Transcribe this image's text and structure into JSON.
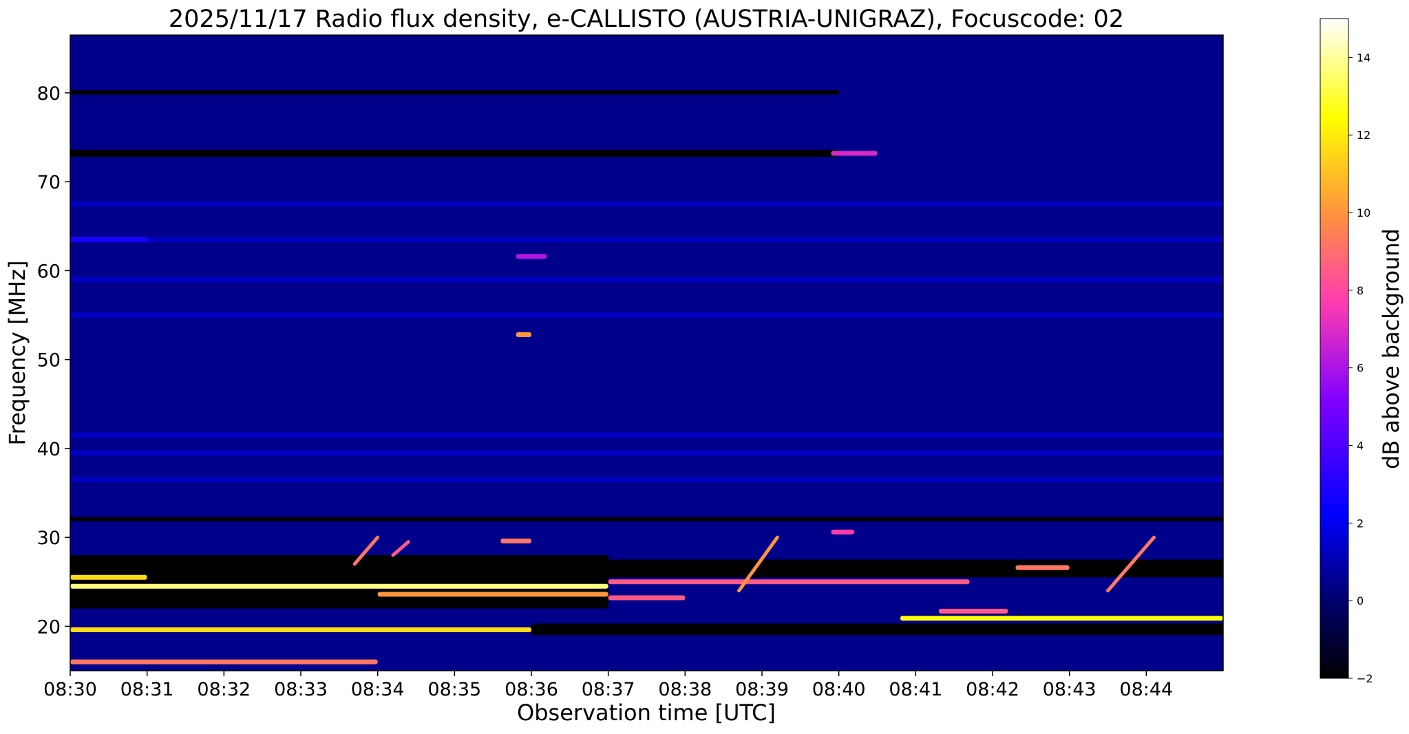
{
  "chart_data": {
    "type": "heatmap",
    "title": "2025/11/17  Radio flux density, e-CALLISTO (AUSTRIA-UNIGRAZ), Focuscode: 02",
    "xlabel": "Observation time [UTC]",
    "ylabel": "Frequency [MHz]",
    "x_ticks": [
      "08:30",
      "08:31",
      "08:32",
      "08:33",
      "08:34",
      "08:35",
      "08:36",
      "08:37",
      "08:38",
      "08:39",
      "08:40",
      "08:41",
      "08:42",
      "08:43",
      "08:44"
    ],
    "x_range": [
      "08:30",
      "08:45"
    ],
    "y_ticks": [
      20,
      30,
      40,
      50,
      60,
      70,
      80
    ],
    "y_range": [
      15,
      86.5
    ],
    "colorbar": {
      "label": "dB above background",
      "range": [
        -2,
        15
      ],
      "ticks": [
        -2,
        0,
        2,
        4,
        6,
        8,
        10,
        12,
        14
      ],
      "colormap": "gnuplot2",
      "colors": [
        "#000000",
        "#0000ff",
        "#8000ff",
        "#ff40a0",
        "#ffa040",
        "#ffff00",
        "#ffffff"
      ]
    },
    "background_level_db": -0.5,
    "grid": false,
    "features": [
      {
        "type": "continuum",
        "freq_mhz": 24.5,
        "start": "08:30",
        "end": "08:37",
        "db": 14
      },
      {
        "type": "continuum",
        "freq_mhz": 25.5,
        "start": "08:30",
        "end": "08:31",
        "db": 12
      },
      {
        "type": "continuum",
        "freq_mhz": 23.6,
        "start": "08:34",
        "end": "08:37",
        "db": 10
      },
      {
        "type": "continuum",
        "freq_mhz": 19.6,
        "start": "08:30",
        "end": "08:36",
        "db": 12
      },
      {
        "type": "continuum",
        "freq_mhz": 16.0,
        "start": "08:30",
        "end": "08:34",
        "db": 9
      },
      {
        "type": "continuum",
        "freq_mhz": 25.0,
        "start": "08:37",
        "end": "08:41.7",
        "db": 8
      },
      {
        "type": "continuum",
        "freq_mhz": 23.2,
        "start": "08:37",
        "end": "08:38",
        "db": 8
      },
      {
        "type": "continuum",
        "freq_mhz": 20.9,
        "start": "08:40.8",
        "end": "08:45",
        "db": 13
      },
      {
        "type": "continuum",
        "freq_mhz": 21.7,
        "start": "08:41.3",
        "end": "08:42.2",
        "db": 8
      },
      {
        "type": "continuum",
        "freq_mhz": 26.6,
        "start": "08:42.3",
        "end": "08:43",
        "db": 9
      },
      {
        "type": "continuum",
        "freq_mhz": 29.6,
        "start": "08:35.6",
        "end": "08:36",
        "db": 9
      },
      {
        "type": "continuum",
        "freq_mhz": 30.6,
        "start": "08:39.9",
        "end": "08:40.2",
        "db": 7
      },
      {
        "type": "continuum",
        "freq_mhz": 73.2,
        "start": "08:39.9",
        "end": "08:40.5",
        "db": 6
      },
      {
        "type": "continuum",
        "freq_mhz": 61.6,
        "start": "08:35.8",
        "end": "08:36.2",
        "db": 5
      },
      {
        "type": "continuum",
        "freq_mhz": 52.8,
        "start": "08:35.8",
        "end": "08:36",
        "db": 10
      },
      {
        "type": "continuum",
        "freq_mhz": 63.5,
        "start": "08:30",
        "end": "08:31",
        "db": 2
      },
      {
        "type": "drift_burst",
        "start": "08:38.7",
        "end": "08:39.2",
        "freq_from": 24,
        "freq_to": 30,
        "db": 10
      },
      {
        "type": "drift_burst",
        "start": "08:43.5",
        "end": "08:44.1",
        "freq_from": 24,
        "freq_to": 30,
        "db": 9
      },
      {
        "type": "drift_burst",
        "start": "08:33.7",
        "end": "08:34",
        "freq_from": 27,
        "freq_to": 30,
        "db": 9
      },
      {
        "type": "drift_burst",
        "start": "08:34.2",
        "end": "08:34.4",
        "freq_from": 28,
        "freq_to": 29.5,
        "db": 8
      }
    ],
    "dark_bands": [
      {
        "freq_from": 22,
        "freq_to": 28,
        "start": "08:30",
        "end": "08:37"
      },
      {
        "freq_from": 25.5,
        "freq_to": 27.5,
        "start": "08:37",
        "end": "08:45"
      },
      {
        "freq_from": 19,
        "freq_to": 20.3,
        "start": "08:36",
        "end": "08:45"
      },
      {
        "freq_from": 31.8,
        "freq_to": 32.3,
        "start": "08:30",
        "end": "08:45"
      },
      {
        "freq_from": 72.8,
        "freq_to": 73.6,
        "start": "08:30",
        "end": "08:40"
      },
      {
        "freq_from": 79.8,
        "freq_to": 80.3,
        "start": "08:30",
        "end": "08:40"
      }
    ],
    "interference_bands_mhz": [
      36.5,
      39.5,
      41.5,
      55,
      59,
      63.5,
      67.5
    ]
  }
}
